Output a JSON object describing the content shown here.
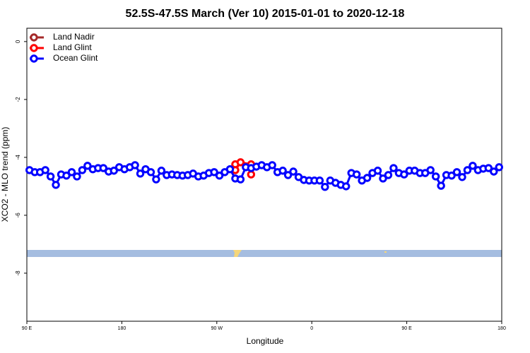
{
  "chart_data": {
    "type": "line",
    "title": "52.5S-47.5S March (Ver 10)   2015-01-01 to 2020-12-18",
    "xlabel": "Longitude",
    "ylabel": "XCO2 - MLO trend (ppm)",
    "xlim": [
      90,
      540
    ],
    "ylim": [
      -9.66,
      0.46
    ],
    "xticks": [
      {
        "value": 90,
        "label": "90 E"
      },
      180,
      {
        "value": 270,
        "label": "90 W"
      },
      {
        "value": 360,
        "label": "0"
      },
      {
        "value": 450,
        "label": "90 E"
      },
      {
        "value": 540,
        "label": "180"
      }
    ],
    "yticks": [
      0,
      -2,
      -4,
      -6,
      -8
    ],
    "legend": "top-left",
    "series": [
      {
        "name": "Land Nadir",
        "color": "#a52a2a",
        "x": [],
        "values": []
      },
      {
        "name": "Land Glint",
        "color": "#ff0000",
        "x": [
          287.5,
          287.5,
          292.5,
          302.5,
          302.5
        ],
        "values": [
          -4.24,
          -4.44,
          -4.17,
          -4.24,
          -4.59
        ]
      },
      {
        "name": "Ocean Glint",
        "color": "#0000ff",
        "x": [
          92.5,
          97.5,
          102.5,
          107.5,
          112.5,
          117.5,
          122.5,
          127.5,
          132.5,
          137.5,
          142.5,
          147.5,
          152.5,
          157.5,
          162.5,
          167.5,
          172.5,
          177.5,
          182.5,
          187.5,
          192.5,
          197.5,
          202.5,
          207.5,
          212.5,
          217.5,
          222.5,
          227.5,
          232.5,
          237.5,
          242.5,
          247.5,
          252.5,
          257.5,
          262.5,
          267.5,
          272.5,
          277.5,
          282.5,
          287.5,
          292.5,
          297.5,
          302.5,
          307.5,
          312.5,
          317.5,
          322.5,
          327.5,
          332.5,
          337.5,
          342.5,
          347.5,
          352.5,
          357.5,
          362.5,
          367.5,
          372.5,
          377.5,
          382.5,
          387.5,
          392.5,
          397.5,
          402.5,
          407.5,
          412.5,
          417.5,
          422.5,
          427.5,
          432.5,
          437.5,
          442.5,
          447.5,
          452.5,
          457.5,
          462.5,
          467.5,
          472.5,
          477.5,
          482.5,
          487.5,
          492.5,
          497.5,
          502.5,
          507.5,
          512.5,
          517.5,
          522.5,
          527.5,
          532.5,
          537.5
        ],
        "values": [
          -4.44,
          -4.51,
          -4.51,
          -4.44,
          -4.66,
          -4.95,
          -4.59,
          -4.63,
          -4.51,
          -4.66,
          -4.44,
          -4.29,
          -4.41,
          -4.37,
          -4.37,
          -4.49,
          -4.46,
          -4.34,
          -4.41,
          -4.34,
          -4.27,
          -4.56,
          -4.41,
          -4.51,
          -4.76,
          -4.46,
          -4.61,
          -4.59,
          -4.61,
          -4.63,
          -4.61,
          -4.56,
          -4.66,
          -4.63,
          -4.54,
          -4.51,
          -4.63,
          -4.51,
          -4.41,
          -4.73,
          -4.76,
          -4.34,
          -4.37,
          -4.32,
          -4.27,
          -4.34,
          -4.27,
          -4.51,
          -4.46,
          -4.61,
          -4.49,
          -4.68,
          -4.78,
          -4.8,
          -4.8,
          -4.8,
          -5.02,
          -4.8,
          -4.88,
          -4.95,
          -5.0,
          -4.54,
          -4.59,
          -4.8,
          -4.71,
          -4.54,
          -4.46,
          -4.73,
          -4.61,
          -4.37,
          -4.54,
          -4.59,
          -4.46,
          -4.46,
          -4.54,
          -4.54,
          -4.44,
          -4.66,
          -4.98,
          -4.61,
          -4.63,
          -4.51,
          -4.68,
          -4.44,
          -4.29,
          -4.44,
          -4.39,
          -4.37,
          -4.49,
          -4.34
        ]
      }
    ]
  }
}
